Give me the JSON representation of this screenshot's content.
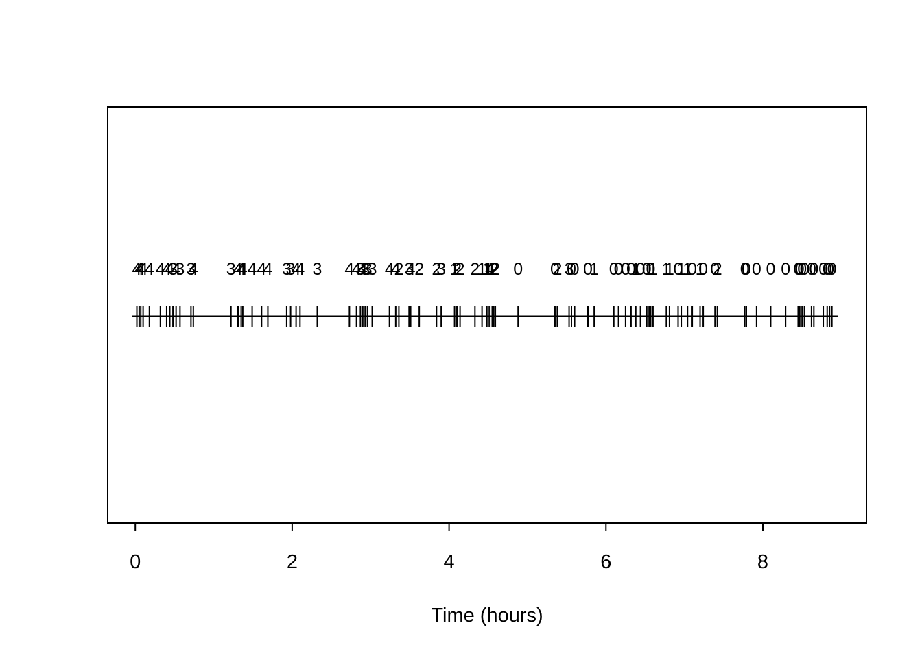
{
  "figure": {
    "xlabel": "Time (hours)"
  },
  "colors": {
    "ink": "#000000",
    "paper": "#ffffff"
  },
  "chart_data": {
    "type": "rug",
    "title": "",
    "xlabel": "Time (hours)",
    "ylabel": "",
    "xlim": [
      -0.36,
      9.33
    ],
    "x_axis_ticks": [
      0,
      2,
      4,
      6,
      8
    ],
    "grid": false,
    "legend_position": "none",
    "baseline_extent": [
      -0.04,
      8.96
    ],
    "label_values_meaning": "count label printed above each event tick",
    "events": [
      {
        "t": 0.02,
        "label": 4
      },
      {
        "t": 0.05,
        "label": 4
      },
      {
        "t": 0.07,
        "label": 4
      },
      {
        "t": 0.1,
        "label": 4
      },
      {
        "t": 0.18,
        "label": 4
      },
      {
        "t": 0.32,
        "label": 4
      },
      {
        "t": 0.4,
        "label": 4
      },
      {
        "t": 0.44,
        "label": 4
      },
      {
        "t": 0.48,
        "label": 3
      },
      {
        "t": 0.52,
        "label": 4
      },
      {
        "t": 0.57,
        "label": 3
      },
      {
        "t": 0.71,
        "label": 3
      },
      {
        "t": 0.74,
        "label": 4
      },
      {
        "t": 1.22,
        "label": 3
      },
      {
        "t": 1.31,
        "label": 4
      },
      {
        "t": 1.35,
        "label": 4
      },
      {
        "t": 1.37,
        "label": 4
      },
      {
        "t": 1.49,
        "label": 4
      },
      {
        "t": 1.61,
        "label": 4
      },
      {
        "t": 1.69,
        "label": 4
      },
      {
        "t": 1.93,
        "label": 3
      },
      {
        "t": 1.98,
        "label": 3
      },
      {
        "t": 2.05,
        "label": 4
      },
      {
        "t": 2.1,
        "label": 4
      },
      {
        "t": 2.32,
        "label": 3
      },
      {
        "t": 2.73,
        "label": 4
      },
      {
        "t": 2.82,
        "label": 4
      },
      {
        "t": 2.87,
        "label": 3
      },
      {
        "t": 2.9,
        "label": 4
      },
      {
        "t": 2.93,
        "label": 3
      },
      {
        "t": 2.96,
        "label": 3
      },
      {
        "t": 3.02,
        "label": 3
      },
      {
        "t": 3.24,
        "label": 4
      },
      {
        "t": 3.32,
        "label": 4
      },
      {
        "t": 3.36,
        "label": 2
      },
      {
        "t": 3.49,
        "label": 3
      },
      {
        "t": 3.51,
        "label": 4
      },
      {
        "t": 3.62,
        "label": 2
      },
      {
        "t": 3.84,
        "label": 2
      },
      {
        "t": 3.9,
        "label": 3
      },
      {
        "t": 4.07,
        "label": 1
      },
      {
        "t": 4.1,
        "label": 2
      },
      {
        "t": 4.14,
        "label": 2
      },
      {
        "t": 4.33,
        "label": 2
      },
      {
        "t": 4.42,
        "label": 1
      },
      {
        "t": 4.48,
        "label": 1
      },
      {
        "t": 4.5,
        "label": 1
      },
      {
        "t": 4.52,
        "label": 4
      },
      {
        "t": 4.55,
        "label": 1
      },
      {
        "t": 4.57,
        "label": 2
      },
      {
        "t": 4.59,
        "label": 2
      },
      {
        "t": 4.88,
        "label": 0
      },
      {
        "t": 5.35,
        "label": 0
      },
      {
        "t": 5.38,
        "label": 2
      },
      {
        "t": 5.53,
        "label": 3
      },
      {
        "t": 5.56,
        "label": 0
      },
      {
        "t": 5.6,
        "label": 0
      },
      {
        "t": 5.77,
        "label": 0
      },
      {
        "t": 5.85,
        "label": 1
      },
      {
        "t": 6.1,
        "label": 0
      },
      {
        "t": 6.16,
        "label": 0
      },
      {
        "t": 6.25,
        "label": 0
      },
      {
        "t": 6.32,
        "label": 0
      },
      {
        "t": 6.38,
        "label": 1
      },
      {
        "t": 6.44,
        "label": 0
      },
      {
        "t": 6.52,
        "label": 0
      },
      {
        "t": 6.55,
        "label": 1
      },
      {
        "t": 6.57,
        "label": 0
      },
      {
        "t": 6.6,
        "label": 1
      },
      {
        "t": 6.77,
        "label": 1
      },
      {
        "t": 6.81,
        "label": 1
      },
      {
        "t": 6.92,
        "label": 0
      },
      {
        "t": 6.96,
        "label": 1
      },
      {
        "t": 7.04,
        "label": 1
      },
      {
        "t": 7.1,
        "label": 0
      },
      {
        "t": 7.2,
        "label": 1
      },
      {
        "t": 7.24,
        "label": 0
      },
      {
        "t": 7.39,
        "label": 0
      },
      {
        "t": 7.42,
        "label": 2
      },
      {
        "t": 7.77,
        "label": 0
      },
      {
        "t": 7.79,
        "label": 0
      },
      {
        "t": 7.92,
        "label": 0
      },
      {
        "t": 8.1,
        "label": 0
      },
      {
        "t": 8.29,
        "label": 0
      },
      {
        "t": 8.45,
        "label": 0
      },
      {
        "t": 8.47,
        "label": 0
      },
      {
        "t": 8.5,
        "label": 0
      },
      {
        "t": 8.53,
        "label": 0
      },
      {
        "t": 8.62,
        "label": 0
      },
      {
        "t": 8.65,
        "label": 0
      },
      {
        "t": 8.77,
        "label": 0
      },
      {
        "t": 8.82,
        "label": 0
      },
      {
        "t": 8.85,
        "label": 0
      },
      {
        "t": 8.88,
        "label": 0
      }
    ]
  }
}
